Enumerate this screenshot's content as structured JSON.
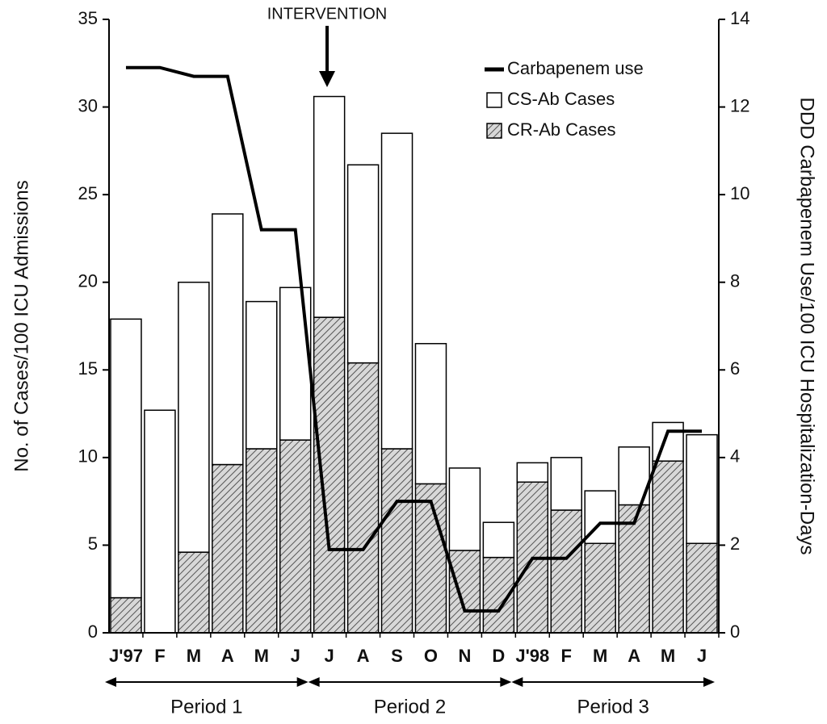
{
  "chart_data": {
    "type": "bar",
    "y_label": "No. of Cases/100 ICU Admissions",
    "y2_label": "DDD Carbapenem Use/100 ICU Hospitalization-Days",
    "annotation": "INTERVENTION",
    "periods": [
      "Period 1",
      "Period 2",
      "Period 3"
    ],
    "categories": [
      "J'97",
      "F",
      "M",
      "A",
      "M",
      "J",
      "J",
      "A",
      "S",
      "O",
      "N",
      "D",
      "J'98",
      "F",
      "M",
      "A",
      "M",
      "J"
    ],
    "series": [
      {
        "name": "CR-Ab Cases",
        "color": "#555555",
        "values": [
          2,
          0,
          4.6,
          9.6,
          10.5,
          11,
          18,
          15.4,
          10.5,
          8.5,
          4.7,
          4.3,
          8.6,
          7,
          5.1,
          7.3,
          9.8,
          5.1
        ]
      },
      {
        "name": "CS-Ab Cases",
        "color": "#ffffff",
        "values": [
          15.9,
          12.7,
          15.4,
          14.3,
          8.4,
          8.7,
          12.6,
          11.3,
          18,
          8,
          4.7,
          2,
          1.1,
          3,
          3,
          3.3,
          2.2,
          6.2
        ]
      },
      {
        "name": "Carbapenem use",
        "color": "#000000",
        "axis": "y2",
        "type": "line",
        "values": [
          12.9,
          12.9,
          12.7,
          12.7,
          9.2,
          9.2,
          1.9,
          1.9,
          3,
          3,
          0.5,
          0.5,
          1.7,
          1.7,
          2.5,
          2.5,
          4.6,
          4.6
        ]
      }
    ],
    "ylim": [
      0,
      35
    ],
    "yticks": [
      0,
      5,
      10,
      15,
      20,
      25,
      30,
      35
    ],
    "y2lim": [
      0,
      14
    ],
    "y2ticks": [
      0,
      2,
      4,
      6,
      8,
      10,
      12,
      14
    ],
    "grid": false
  }
}
